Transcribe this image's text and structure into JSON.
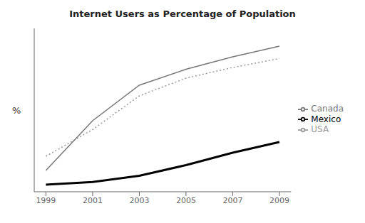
{
  "chart_data": {
    "type": "line",
    "title": "Internet Users as Percentage of Population",
    "ylabel": "%",
    "x": [
      1999,
      2001,
      2003,
      2005,
      2007,
      2009
    ],
    "series": [
      {
        "name": "USA",
        "color": "#999999",
        "line_style": "dotted",
        "values": [
          18,
          33,
          52,
          62,
          68,
          73
        ]
      },
      {
        "name": "Canada",
        "color": "#777777",
        "line_style": "solid",
        "values": [
          10,
          38,
          58,
          67,
          74,
          80
        ]
      },
      {
        "name": "Mexico",
        "color": "#000000",
        "line_style": "solid",
        "values": [
          2,
          3.5,
          7,
          13,
          20,
          26
        ]
      }
    ],
    "xlim": [
      1998.5,
      2009.5
    ],
    "ylim": [
      -2,
      90
    ],
    "xticks": [
      1999,
      2001,
      2003,
      2005,
      2007,
      2009
    ],
    "tick_labels": "x",
    "grid": false,
    "legend": "right"
  }
}
